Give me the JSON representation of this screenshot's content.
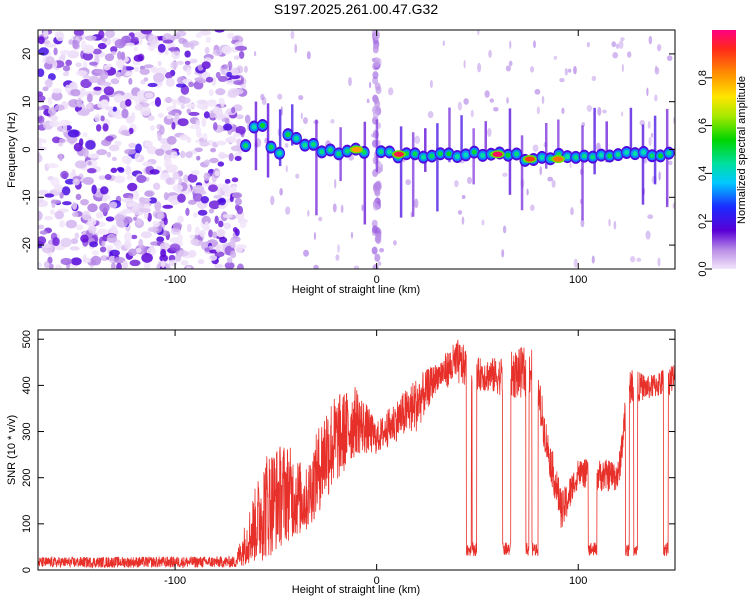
{
  "title": "S197.2025.261.00.47.G32",
  "colors": {
    "axis": "#000000",
    "snr_line": "#e8302a",
    "zero_line": "#000000"
  },
  "chart_data": [
    {
      "type": "heatmap",
      "name": "spectrogram",
      "xlabel": "Height of straight line (km)",
      "ylabel": "Frequency (Hz)",
      "xlim": [
        -168,
        148
      ],
      "ylim": [
        -25,
        25
      ],
      "xticks": [
        -100,
        0,
        100
      ],
      "yticks": [
        -20,
        -10,
        0,
        10,
        20
      ],
      "colorbar": {
        "label": "Normalized spectral amplitude",
        "range": [
          0,
          1
        ],
        "ticks": [
          0.0,
          0.2,
          0.4,
          0.6,
          0.8
        ]
      },
      "noise_region_x": [
        -168,
        -66
      ],
      "trace": [
        {
          "x": -65,
          "y": 1
        },
        {
          "x": -60,
          "y": 6
        },
        {
          "x": -55,
          "y": 4
        },
        {
          "x": -50,
          "y": -3
        },
        {
          "x": -45,
          "y": 3
        },
        {
          "x": -40,
          "y": 2
        },
        {
          "x": -35,
          "y": 1
        },
        {
          "x": -28,
          "y": 0
        },
        {
          "x": -20,
          "y": -1
        },
        {
          "x": -10,
          "y": 0
        },
        {
          "x": 0,
          "y": -1
        },
        {
          "x": 20,
          "y": -1
        },
        {
          "x": 40,
          "y": -1
        },
        {
          "x": 60,
          "y": -1
        },
        {
          "x": 80,
          "y": -2
        },
        {
          "x": 100,
          "y": -1
        },
        {
          "x": 120,
          "y": -1
        },
        {
          "x": 147,
          "y": -1
        }
      ],
      "peaks": [
        {
          "x": 11,
          "y": -1,
          "amp": 0.95
        },
        {
          "x": 60,
          "y": -1,
          "amp": 0.98
        },
        {
          "x": 76,
          "y": -2,
          "amp": 0.9
        },
        {
          "x": 90,
          "y": -2,
          "amp": 0.85
        },
        {
          "x": -10,
          "y": 0,
          "amp": 0.8
        }
      ]
    },
    {
      "type": "line",
      "name": "snr",
      "xlabel": "Height of straight line (km)",
      "ylabel": "SNR (10 * v/v)",
      "xlim": [
        -168,
        148
      ],
      "ylim": [
        0,
        520
      ],
      "xticks": [
        -100,
        0,
        100
      ],
      "yticks": [
        0,
        100,
        200,
        300,
        400,
        500
      ],
      "envelope": [
        {
          "x": -168,
          "lo": 5,
          "hi": 28
        },
        {
          "x": -70,
          "lo": 5,
          "hi": 30
        },
        {
          "x": -55,
          "lo": 20,
          "hi": 260
        },
        {
          "x": -45,
          "lo": 60,
          "hi": 280
        },
        {
          "x": -35,
          "lo": 80,
          "hi": 220
        },
        {
          "x": -25,
          "lo": 150,
          "hi": 370
        },
        {
          "x": -10,
          "lo": 250,
          "hi": 400
        },
        {
          "x": 0,
          "lo": 250,
          "hi": 320
        },
        {
          "x": 10,
          "lo": 280,
          "hi": 370
        },
        {
          "x": 20,
          "lo": 300,
          "hi": 420
        },
        {
          "x": 30,
          "lo": 390,
          "hi": 450
        },
        {
          "x": 40,
          "lo": 400,
          "hi": 500
        },
        {
          "x": 50,
          "lo": 390,
          "hi": 460
        },
        {
          "x": 60,
          "lo": 380,
          "hi": 460
        },
        {
          "x": 70,
          "lo": 370,
          "hi": 480
        },
        {
          "x": 78,
          "lo": 380,
          "hi": 490
        },
        {
          "x": 85,
          "lo": 220,
          "hi": 300
        },
        {
          "x": 92,
          "lo": 80,
          "hi": 170
        },
        {
          "x": 100,
          "lo": 180,
          "hi": 240
        },
        {
          "x": 110,
          "lo": 170,
          "hi": 240
        },
        {
          "x": 120,
          "lo": 170,
          "hi": 240
        },
        {
          "x": 125,
          "lo": 360,
          "hi": 440
        },
        {
          "x": 135,
          "lo": 370,
          "hi": 420
        },
        {
          "x": 147,
          "lo": 380,
          "hi": 450
        }
      ],
      "low_level": [
        30,
        60
      ]
    }
  ]
}
